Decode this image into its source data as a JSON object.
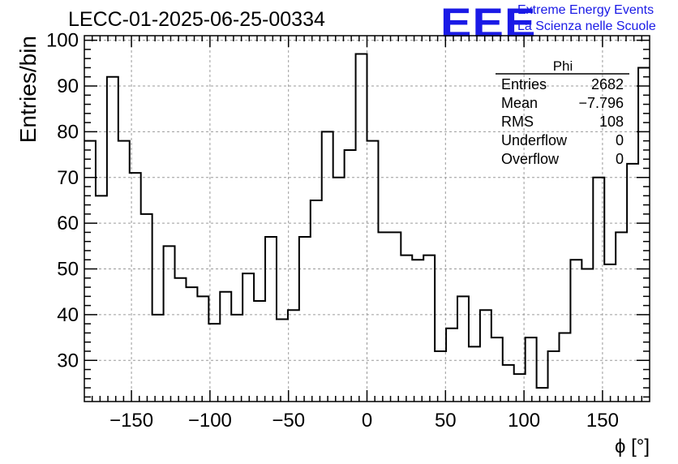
{
  "header": {
    "run_title": "LECC-01-2025-06-25-00334",
    "logo_text": "EEE",
    "logo_line1": "Extreme Energy Events",
    "logo_line2": "La Scienza nelle Scuole"
  },
  "colors": {
    "logo": "#1a1ae6",
    "axis": "#000000",
    "grid": "#9a9a9a",
    "histogram": "#000000"
  },
  "stats_box": {
    "name": "Phi",
    "rows": [
      {
        "label": "Entries",
        "value": "2682"
      },
      {
        "label": "Mean",
        "value": "−7.796"
      },
      {
        "label": "RMS",
        "value": "108"
      },
      {
        "label": "Underflow",
        "value": "0"
      },
      {
        "label": "Overflow",
        "value": "0"
      }
    ]
  },
  "chart_data": {
    "type": "histogram",
    "title": "LECC-01-2025-06-25-00334",
    "xlabel": "ϕ [°]",
    "ylabel": "Entries/bin",
    "xlim": [
      -180,
      180
    ],
    "ylim": [
      21,
      101
    ],
    "bin_width": 7.2,
    "bin_edges_start": -180,
    "grid": true,
    "x_ticks": [
      -150,
      -100,
      -50,
      0,
      50,
      100,
      150
    ],
    "x_tick_labels": [
      "−150",
      "−100",
      "−50",
      "0",
      "50",
      "100",
      "150"
    ],
    "y_ticks": [
      30,
      40,
      50,
      60,
      70,
      80,
      90,
      100
    ],
    "y_tick_labels": [
      "30",
      "40",
      "50",
      "60",
      "70",
      "80",
      "90",
      "100"
    ],
    "values": [
      78,
      66,
      92,
      78,
      71,
      62,
      40,
      55,
      48,
      46,
      44,
      38,
      45,
      40,
      49,
      43,
      57,
      39,
      41,
      57,
      65,
      80,
      70,
      76,
      97,
      78,
      58,
      58,
      53,
      52,
      53,
      32,
      37,
      44,
      33,
      41,
      35,
      29,
      27,
      35,
      24,
      32,
      36,
      52,
      50,
      70,
      51,
      58,
      73,
      94
    ]
  }
}
